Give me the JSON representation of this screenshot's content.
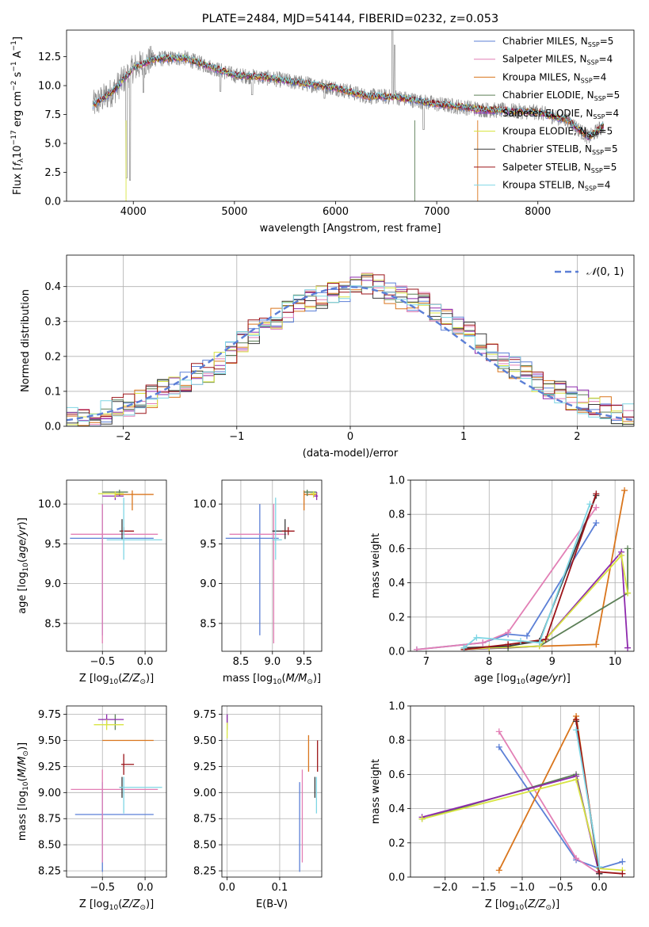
{
  "colors": {
    "Chabrier MILES": "#5b7fd6",
    "Salpeter MILES": "#e27fb5",
    "Kroupa MILES": "#d9751c",
    "Chabrier ELODIE": "#5c7f57",
    "Salpeter ELODIE": "#8e2aad",
    "Kroupa ELODIE": "#d8e442",
    "Chabrier STELIB": "#3a3a3a",
    "Salpeter STELIB": "#9b1318",
    "Kroupa STELIB": "#7fd6e4",
    "observed": "#8a8a8a",
    "grid": "#b0b0b0"
  },
  "chart_data": [
    {
      "id": "spectrum",
      "type": "line",
      "title": "PLATE=2484, MJD=54144, FIBERID=0232, z=0.053",
      "xlabel": "wavelength [Angstrom, rest frame]",
      "ylabel": "Flux [f_λ10^−17 erg cm^−2 s^−1 A^−1]",
      "xlim": [
        3340,
        8950
      ],
      "ylim": [
        0,
        14.8
      ],
      "xticks": [
        4000,
        5000,
        6000,
        7000,
        8000
      ],
      "yticks": [
        0.0,
        2.5,
        5.0,
        7.5,
        10.0,
        12.5
      ],
      "grid": false,
      "legend_position": "top-right",
      "legend": [
        {
          "name": "Chabrier MILES",
          "nssp": "5"
        },
        {
          "name": "Salpeter MILES",
          "nssp": "4"
        },
        {
          "name": "Kroupa MILES",
          "nssp": "4"
        },
        {
          "name": "Chabrier ELODIE",
          "nssp": "5"
        },
        {
          "name": "Salpeter ELODIE",
          "nssp": "4"
        },
        {
          "name": "Kroupa ELODIE",
          "nssp": "5"
        },
        {
          "name": "Chabrier STELIB",
          "nssp": "5"
        },
        {
          "name": "Salpeter STELIB",
          "nssp": "5"
        },
        {
          "name": "Kroupa STELIB",
          "nssp": "4"
        }
      ],
      "continuum": [
        [
          3600,
          8.3
        ],
        [
          3800,
          9.5
        ],
        [
          4000,
          11.5
        ],
        [
          4200,
          12.3
        ],
        [
          4500,
          12.4
        ],
        [
          4800,
          11.5
        ],
        [
          5000,
          10.9
        ],
        [
          5300,
          10.7
        ],
        [
          5600,
          10.3
        ],
        [
          6000,
          9.8
        ],
        [
          6300,
          9.1
        ],
        [
          6600,
          9.0
        ],
        [
          7000,
          8.4
        ],
        [
          7500,
          7.9
        ],
        [
          8000,
          7.7
        ],
        [
          8300,
          7.0
        ],
        [
          8500,
          5.5
        ],
        [
          8650,
          6.5
        ]
      ],
      "features": [
        [
          3933,
          2.0
        ],
        [
          3968,
          1.8
        ],
        [
          4100,
          9.4
        ],
        [
          4861,
          9.5
        ],
        [
          5175,
          9.2
        ],
        [
          5890,
          8.9
        ],
        [
          6563,
          16.0
        ],
        [
          6583,
          13.5
        ],
        [
          6870,
          6.2
        ],
        [
          7600,
          7.5
        ]
      ]
    },
    {
      "id": "residuals",
      "type": "histogram",
      "xlabel": "(data-model)/error",
      "ylabel": "Normed distribution",
      "xlim": [
        -2.5,
        2.5
      ],
      "ylim": [
        0,
        0.49
      ],
      "xticks": [
        -2,
        -1,
        0,
        1,
        2
      ],
      "yticks": [
        0.0,
        0.1,
        0.2,
        0.3,
        0.4
      ],
      "grid": true,
      "legend_position": "top-right",
      "reference_label": "N(0,1)",
      "bin_width": 0.1,
      "bin_start": -2.5,
      "base_values": [
        0.03,
        0.025,
        0.035,
        0.04,
        0.05,
        0.06,
        0.07,
        0.085,
        0.1,
        0.11,
        0.13,
        0.15,
        0.16,
        0.18,
        0.21,
        0.24,
        0.27,
        0.29,
        0.31,
        0.33,
        0.35,
        0.36,
        0.37,
        0.38,
        0.39,
        0.4,
        0.41,
        0.4,
        0.38,
        0.37,
        0.36,
        0.35,
        0.33,
        0.31,
        0.29,
        0.27,
        0.24,
        0.21,
        0.19,
        0.17,
        0.15,
        0.13,
        0.11,
        0.1,
        0.08,
        0.07,
        0.06,
        0.05,
        0.04,
        0.03
      ]
    },
    {
      "id": "age-vs-z",
      "type": "errorbar",
      "xlabel": "Z [log10(Z/Z☉)]",
      "ylabel": "age  [log10(age/yr)]",
      "xlim": [
        -0.92,
        0.25
      ],
      "ylim": [
        8.15,
        10.3
      ],
      "xticks": [
        -0.5,
        0.0
      ],
      "yticks": [
        8.5,
        9.0,
        9.5,
        10.0
      ],
      "grid": true,
      "points": [
        {
          "model": "Chabrier MILES",
          "x": -0.5,
          "xerr": [
            0.38,
            0.6
          ],
          "y": 9.57,
          "yerr": [
            1.22,
            0.43
          ]
        },
        {
          "model": "Salpeter MILES",
          "x": -0.5,
          "xerr": [
            0.37,
            0.65
          ],
          "y": 9.62,
          "yerr": [
            1.37,
            0.38
          ]
        },
        {
          "model": "Kroupa MILES",
          "x": -0.15,
          "xerr": [
            0.2,
            0.25
          ],
          "y": 10.12,
          "yerr": [
            0.2,
            0.05
          ]
        },
        {
          "model": "Chabrier ELODIE",
          "x": -0.3,
          "xerr": [
            0.2,
            0.1
          ],
          "y": 10.15,
          "yerr": [
            0.05,
            0.03
          ]
        },
        {
          "model": "Salpeter ELODIE",
          "x": -0.35,
          "xerr": [
            0.15,
            0.1
          ],
          "y": 10.1,
          "yerr": [
            0.05,
            0.05
          ]
        },
        {
          "model": "Kroupa ELODIE",
          "x": -0.35,
          "xerr": [
            0.2,
            0.1
          ],
          "y": 10.13,
          "yerr": [
            0.05,
            0.03
          ]
        },
        {
          "model": "Chabrier STELIB",
          "x": -0.27,
          "xerr": [
            0.03,
            0.03
          ],
          "y": 9.66,
          "yerr": [
            0.1,
            0.15
          ]
        },
        {
          "model": "Salpeter STELIB",
          "x": -0.25,
          "xerr": [
            0.03,
            0.12
          ],
          "y": 9.66,
          "yerr": [
            0.05,
            0.05
          ]
        },
        {
          "model": "Kroupa STELIB",
          "x": -0.25,
          "xerr": [
            0.2,
            0.45
          ],
          "y": 9.55,
          "yerr": [
            0.25,
            0.53
          ]
        }
      ]
    },
    {
      "id": "age-vs-mass",
      "type": "errorbar",
      "xlabel": "mass [log10(M/M☉)]",
      "ylabel": "",
      "xlim": [
        8.2,
        9.78
      ],
      "ylim": [
        8.15,
        10.3
      ],
      "xticks": [
        8.5,
        9.0,
        9.5
      ],
      "yticks": [
        8.5,
        9.0,
        9.5,
        10.0
      ],
      "grid": true,
      "points": [
        {
          "model": "Chabrier MILES",
          "x": 8.8,
          "xerr": [
            0.54,
            0.3
          ],
          "y": 9.57,
          "yerr": [
            1.22,
            0.43
          ]
        },
        {
          "model": "Salpeter MILES",
          "x": 9.02,
          "xerr": [
            0.7,
            0.2
          ],
          "y": 9.62,
          "yerr": [
            1.37,
            0.38
          ]
        },
        {
          "model": "Kroupa MILES",
          "x": 9.5,
          "xerr": [
            0.0,
            0.2
          ],
          "y": 10.12,
          "yerr": [
            0.2,
            0.05
          ]
        },
        {
          "model": "Chabrier ELODIE",
          "x": 9.55,
          "xerr": [
            0.05,
            0.15
          ],
          "y": 10.15,
          "yerr": [
            0.05,
            0.03
          ]
        },
        {
          "model": "Salpeter ELODIE",
          "x": 9.7,
          "xerr": [
            0.05,
            0.02
          ],
          "y": 10.1,
          "yerr": [
            0.05,
            0.05
          ]
        },
        {
          "model": "Kroupa ELODIE",
          "x": 9.65,
          "xerr": [
            0.05,
            0.05
          ],
          "y": 10.13,
          "yerr": [
            0.05,
            0.03
          ]
        },
        {
          "model": "Chabrier STELIB",
          "x": 9.2,
          "xerr": [
            0.2,
            0.05
          ],
          "y": 9.66,
          "yerr": [
            0.1,
            0.15
          ]
        },
        {
          "model": "Salpeter STELIB",
          "x": 9.25,
          "xerr": [
            0.1,
            0.1
          ],
          "y": 9.66,
          "yerr": [
            0.05,
            0.05
          ]
        },
        {
          "model": "Kroupa STELIB",
          "x": 9.05,
          "xerr": [
            0.05,
            0.1
          ],
          "y": 9.55,
          "yerr": [
            0.25,
            0.53
          ]
        }
      ]
    },
    {
      "id": "weight-vs-age",
      "type": "line",
      "xlabel": "age  [log10(age/yr)]",
      "ylabel": "mass weight",
      "xlim": [
        6.75,
        10.3
      ],
      "ylim": [
        0,
        1.0
      ],
      "xticks": [
        7,
        8,
        9,
        10
      ],
      "yticks": [
        0.0,
        0.2,
        0.4,
        0.6,
        0.8,
        1.0
      ],
      "grid": true,
      "series": [
        {
          "model": "Chabrier MILES",
          "x": [
            6.85,
            7.9,
            8.3,
            8.6,
            9.7
          ],
          "y": [
            0.01,
            0.05,
            0.1,
            0.09,
            0.75
          ]
        },
        {
          "model": "Salpeter MILES",
          "x": [
            6.85,
            7.9,
            8.3,
            9.7
          ],
          "y": [
            0.01,
            0.05,
            0.11,
            0.84
          ]
        },
        {
          "model": "Kroupa MILES",
          "x": [
            7.6,
            8.0,
            9.7,
            10.15
          ],
          "y": [
            0.01,
            0.02,
            0.04,
            0.94
          ]
        },
        {
          "model": "Chabrier ELODIE",
          "x": [
            7.6,
            8.3,
            8.8,
            10.2,
            10.2
          ],
          "y": [
            0.01,
            0.02,
            0.03,
            0.34,
            0.6
          ]
        },
        {
          "model": "Salpeter ELODIE",
          "x": [
            7.6,
            8.8,
            10.1,
            10.2
          ],
          "y": [
            0.01,
            0.03,
            0.58,
            0.02
          ]
        },
        {
          "model": "Kroupa ELODIE",
          "x": [
            7.6,
            8.0,
            8.8,
            10.1,
            10.2
          ],
          "y": [
            0.01,
            0.02,
            0.03,
            0.56,
            0.34
          ]
        },
        {
          "model": "Chabrier STELIB",
          "x": [
            7.6,
            8.3,
            8.8,
            9.7
          ],
          "y": [
            0.02,
            0.03,
            0.06,
            0.91
          ]
        },
        {
          "model": "Salpeter STELIB",
          "x": [
            7.6,
            8.3,
            8.9,
            9.7
          ],
          "y": [
            0.01,
            0.04,
            0.07,
            0.92
          ]
        },
        {
          "model": "Kroupa STELIB",
          "x": [
            7.6,
            7.8,
            8.5,
            8.8,
            9.6
          ],
          "y": [
            0.02,
            0.08,
            0.06,
            0.05,
            0.86
          ]
        }
      ]
    },
    {
      "id": "mass-vs-z",
      "type": "errorbar",
      "xlabel": "Z [log10(Z/Z☉)]",
      "ylabel": "mass [log10(M/M☉)]",
      "xlim": [
        -0.92,
        0.25
      ],
      "ylim": [
        8.19,
        9.83
      ],
      "xticks": [
        -0.5,
        0.0
      ],
      "yticks": [
        8.25,
        8.5,
        8.75,
        9.0,
        9.25,
        9.5,
        9.75
      ],
      "grid": true,
      "points": [
        {
          "model": "Chabrier MILES",
          "x": -0.5,
          "xerr": [
            0.32,
            0.6
          ],
          "y": 8.79,
          "yerr": [
            0.55,
            0.31
          ]
        },
        {
          "model": "Salpeter MILES",
          "x": -0.5,
          "xerr": [
            0.37,
            0.65
          ],
          "y": 9.03,
          "yerr": [
            0.7,
            0.19
          ]
        },
        {
          "model": "Kroupa MILES",
          "x": -0.15,
          "xerr": [
            0.35,
            0.25
          ],
          "y": 9.5,
          "yerr": [
            0.0,
            0.0
          ]
        },
        {
          "model": "Chabrier ELODIE",
          "x": -0.35,
          "xerr": [
            0.0,
            0.0
          ],
          "y": 9.65,
          "yerr": [
            0.05,
            0.1
          ]
        },
        {
          "model": "Salpeter ELODIE",
          "x": -0.45,
          "xerr": [
            0.1,
            0.2
          ],
          "y": 9.7,
          "yerr": [
            0.05,
            0.05
          ]
        },
        {
          "model": "Kroupa ELODIE",
          "x": -0.45,
          "xerr": [
            0.15,
            0.2
          ],
          "y": 9.65,
          "yerr": [
            0.05,
            0.05
          ]
        },
        {
          "model": "Chabrier STELIB",
          "x": -0.27,
          "xerr": [
            0.03,
            0.0
          ],
          "y": 9.05,
          "yerr": [
            0.1,
            0.1
          ]
        },
        {
          "model": "Salpeter STELIB",
          "x": -0.25,
          "xerr": [
            0.03,
            0.12
          ],
          "y": 9.27,
          "yerr": [
            0.1,
            0.1
          ]
        },
        {
          "model": "Kroupa STELIB",
          "x": -0.25,
          "xerr": [
            0.05,
            0.45
          ],
          "y": 9.05,
          "yerr": [
            0.25,
            0.1
          ]
        }
      ]
    },
    {
      "id": "mass-vs-ebv",
      "type": "errorbar",
      "xlabel": "E(B-V)",
      "ylabel": "",
      "xlim": [
        -0.01,
        0.18
      ],
      "ylim": [
        8.19,
        9.83
      ],
      "xticks": [
        0.0,
        0.1
      ],
      "yticks": [
        8.25,
        8.5,
        8.75,
        9.0,
        9.25,
        9.5,
        9.75
      ],
      "grid": true,
      "points": [
        {
          "model": "Chabrier MILES",
          "x": 0.138,
          "yerr": [
            0.55,
            0.31
          ],
          "y": 8.79
        },
        {
          "model": "Salpeter MILES",
          "x": 0.143,
          "yerr": [
            0.7,
            0.19
          ],
          "y": 9.03
        },
        {
          "model": "Kroupa MILES",
          "x": 0.155,
          "yerr": [
            0.3,
            0.05
          ],
          "y": 9.5
        },
        {
          "model": "Chabrier ELODIE",
          "x": 0.0,
          "yerr": [
            0.05,
            0.1
          ],
          "y": 9.65
        },
        {
          "model": "Salpeter ELODIE",
          "x": 0.0,
          "yerr": [
            0.05,
            0.05
          ],
          "y": 9.7
        },
        {
          "model": "Kroupa ELODIE",
          "x": 0.0,
          "yerr": [
            0.1,
            0.05
          ],
          "y": 9.62
        },
        {
          "model": "Chabrier STELIB",
          "x": 0.167,
          "yerr": [
            0.1,
            0.1
          ],
          "y": 9.05
        },
        {
          "model": "Salpeter STELIB",
          "x": 0.172,
          "yerr": [
            0.1,
            0.2
          ],
          "y": 9.3
        },
        {
          "model": "Kroupa STELIB",
          "x": 0.17,
          "yerr": [
            0.25,
            0.1
          ],
          "y": 9.05
        }
      ]
    },
    {
      "id": "weight-vs-z",
      "type": "line",
      "xlabel": "Z [log10(Z/Z☉)]",
      "ylabel": "mass weight",
      "xlim": [
        -2.45,
        0.45
      ],
      "ylim": [
        0,
        1.0
      ],
      "xticks": [
        -2.0,
        -1.5,
        -1.0,
        -0.5,
        0.0
      ],
      "yticks": [
        0.0,
        0.2,
        0.4,
        0.6,
        0.8,
        1.0
      ],
      "grid": true,
      "series": [
        {
          "model": "Chabrier MILES",
          "x": [
            -1.3,
            -0.3,
            0.0,
            0.3
          ],
          "y": [
            0.76,
            0.1,
            0.05,
            0.09
          ]
        },
        {
          "model": "Salpeter MILES",
          "x": [
            -1.3,
            -0.3,
            0.0
          ],
          "y": [
            0.85,
            0.11,
            0.02
          ]
        },
        {
          "model": "Kroupa MILES",
          "x": [
            -1.3,
            -0.3,
            0.0
          ],
          "y": [
            0.04,
            0.94,
            0.02
          ]
        },
        {
          "model": "Chabrier ELODIE",
          "x": [
            -2.3,
            -0.3,
            0.0
          ],
          "y": [
            0.34,
            0.6,
            0.02
          ]
        },
        {
          "model": "Salpeter ELODIE",
          "x": [
            -2.3,
            -0.3,
            0.0
          ],
          "y": [
            0.35,
            0.59,
            0.02
          ]
        },
        {
          "model": "Kroupa ELODIE",
          "x": [
            -2.3,
            -0.3,
            0.0,
            0.3
          ],
          "y": [
            0.34,
            0.57,
            0.05,
            0.04
          ]
        },
        {
          "model": "Chabrier STELIB",
          "x": [
            -0.3,
            0.0
          ],
          "y": [
            0.91,
            0.02
          ]
        },
        {
          "model": "Salpeter STELIB",
          "x": [
            -0.3,
            0.0,
            0.3
          ],
          "y": [
            0.92,
            0.03,
            0.02
          ]
        },
        {
          "model": "Kroupa STELIB",
          "x": [
            -0.3,
            0.0
          ],
          "y": [
            0.86,
            0.06
          ]
        }
      ]
    }
  ]
}
